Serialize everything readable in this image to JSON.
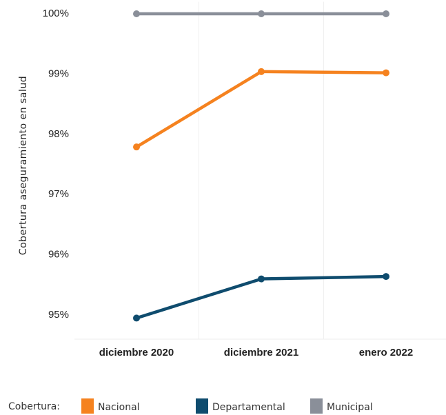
{
  "chart_data": {
    "type": "line",
    "y_label": "Cobertura aseguramiento en salud",
    "categories": [
      "diciembre 2020",
      "diciembre 2021",
      "enero 2022"
    ],
    "series": [
      {
        "name": "Nacional",
        "color": "#f5821f",
        "values": [
          97.79,
          99.04,
          99.02
        ]
      },
      {
        "name": "Departamental",
        "color": "#0f4c6e",
        "values": [
          94.95,
          95.6,
          95.64
        ]
      },
      {
        "name": "Municipal",
        "color": "#8a8f99",
        "values": [
          100,
          100,
          100
        ]
      }
    ],
    "legend_title": "Cobertura:",
    "ylim": [
      94.6,
      100.2
    ],
    "yticks": [
      {
        "value": 95,
        "label": "95%"
      },
      {
        "value": 96,
        "label": "96%"
      },
      {
        "value": 97,
        "label": "97%"
      },
      {
        "value": 98,
        "label": "98%"
      },
      {
        "value": 99,
        "label": "99%"
      },
      {
        "value": 100,
        "label": "100%"
      }
    ],
    "grid": true
  }
}
